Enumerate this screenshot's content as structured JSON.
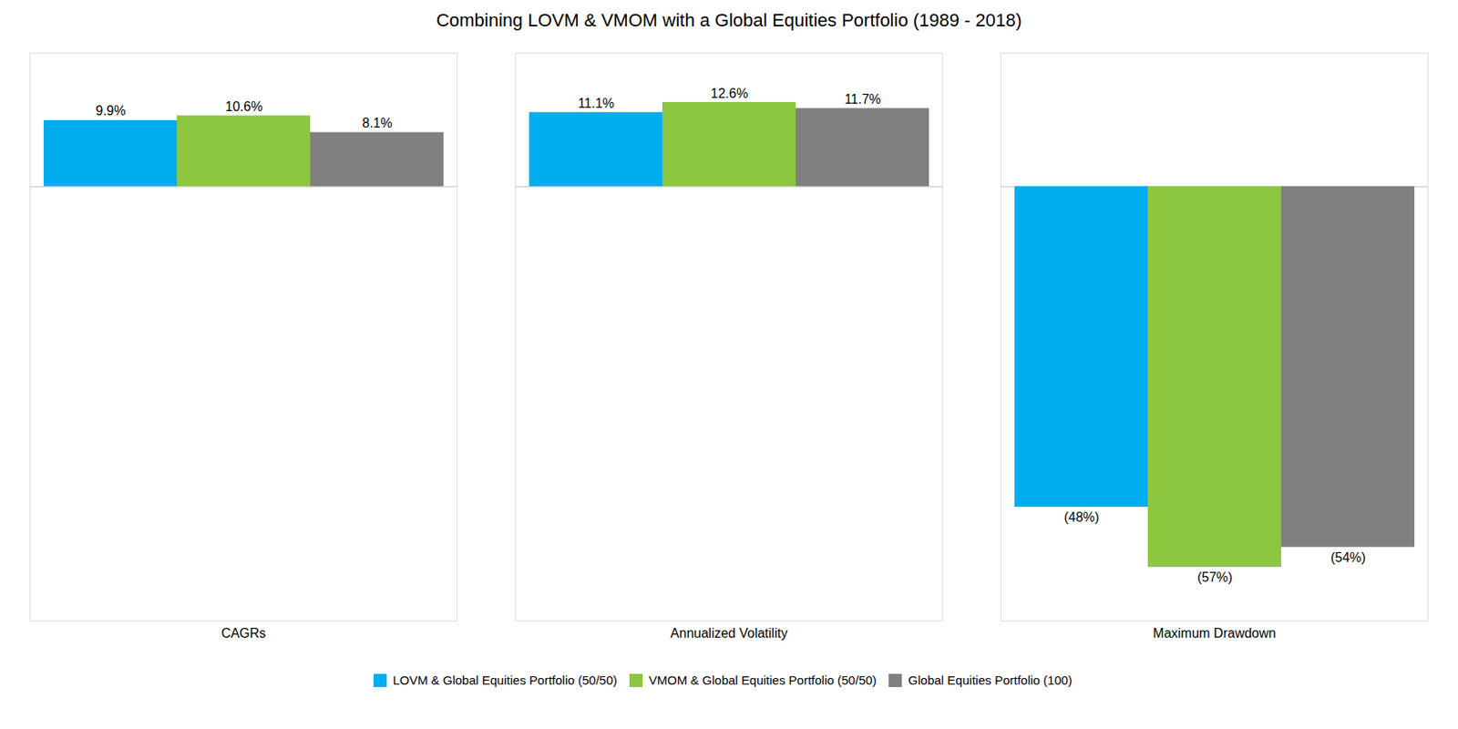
{
  "chart_data": {
    "type": "bar",
    "title": "Combining LOVM & VMOM with a Global Equities Portfolio (1989 - 2018)",
    "categories": [
      "CAGRs",
      "Annualized Volatility",
      "Maximum Drawdown"
    ],
    "series": [
      {
        "name": "LOVM & Global Equities Portfolio (50/50)",
        "color": "#00AEEF",
        "values": [
          9.9,
          11.1,
          -48.0
        ],
        "value_labels": [
          "9.9%",
          "11.1%",
          "(48%)"
        ]
      },
      {
        "name": "VMOM & Global Equities Portfolio (50/50)",
        "color": "#8DC63F",
        "values": [
          10.6,
          12.6,
          -57.0
        ],
        "value_labels": [
          "10.6%",
          "12.6%",
          "(57%)"
        ]
      },
      {
        "name": "Global Equities Portfolio (100)",
        "color": "#808080",
        "values": [
          8.1,
          11.7,
          -54.0
        ],
        "value_labels": [
          "8.1%",
          "11.7%",
          "(54%)"
        ]
      }
    ],
    "ylim": [
      -65,
      20
    ],
    "grid": false,
    "legend": "bottom",
    "data_labels": true,
    "tick_labels": "x"
  }
}
